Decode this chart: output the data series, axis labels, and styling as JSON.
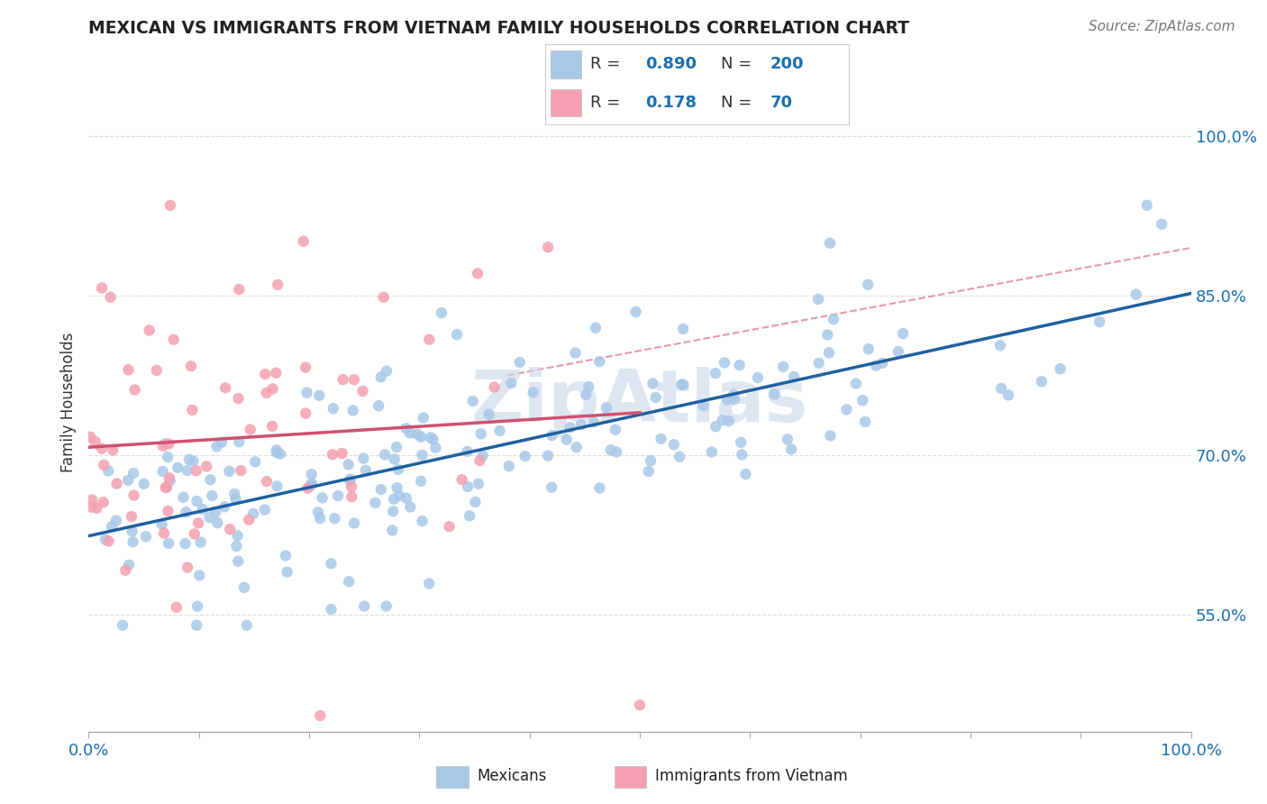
{
  "title": "MEXICAN VS IMMIGRANTS FROM VIETNAM FAMILY HOUSEHOLDS CORRELATION CHART",
  "source": "Source: ZipAtlas.com",
  "ylabel": "Family Households",
  "y_tick_labels": [
    "55.0%",
    "70.0%",
    "85.0%",
    "100.0%"
  ],
  "y_tick_values": [
    0.55,
    0.7,
    0.85,
    1.0
  ],
  "x_range": [
    0.0,
    1.0
  ],
  "y_range": [
    0.44,
    1.06
  ],
  "r_mexican": 0.89,
  "n_mexican": 200,
  "r_vietnam": 0.178,
  "n_vietnam": 70,
  "blue_scatter_color": "#a8c8e8",
  "pink_scatter_color": "#f4a0b0",
  "blue_line_color": "#2060a0",
  "pink_line_color": "#d05070",
  "pink_dash_color": "#e08090",
  "watermark": "ZipAtlas",
  "watermark_color": "#c8d8e8",
  "legend_r_color": "#1a6faf",
  "grid_color": "#dddddd",
  "seed": 123
}
